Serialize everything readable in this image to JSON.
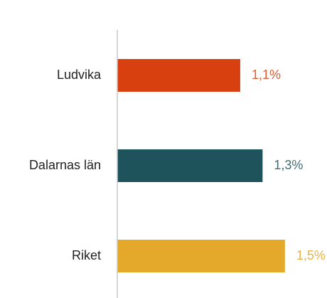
{
  "chart_data": {
    "type": "bar",
    "orientation": "horizontal",
    "categories": [
      "Ludvika",
      "Dalarnas län",
      "Riket"
    ],
    "values": [
      1.1,
      1.3,
      1.5
    ],
    "value_labels": [
      "1,1%",
      "1,3%",
      "1,5%"
    ],
    "colors": [
      "#d8400f",
      "#1f535b",
      "#e4a82a"
    ],
    "xlim": [
      0,
      1.8
    ]
  }
}
